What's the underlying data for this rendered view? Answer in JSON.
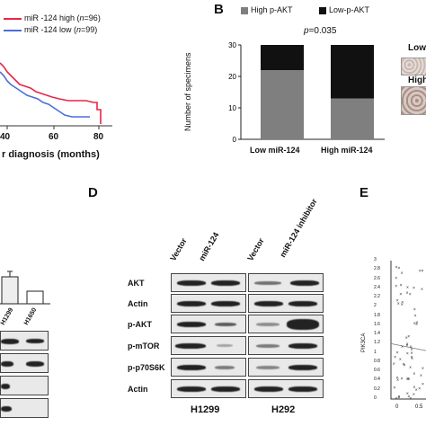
{
  "panelA": {
    "legend_high_label": "miR -124 high (",
    "legend_high_n": "n",
    "legend_high_val": "=96)",
    "legend_low_label": "miR -124 low (",
    "legend_low_n": "n",
    "legend_low_val": "=99)",
    "ticks": [
      "40",
      "60",
      "80"
    ],
    "xlabel": "r diagnosis (months)",
    "colors": {
      "high": "#e8254a",
      "low": "#4a6fd8"
    }
  },
  "panelB": {
    "letter": "B",
    "legend_high": "High p-AKT",
    "legend_low": "Low-p-AKT",
    "pvalue_p": "p",
    "pvalue_val": "=0.035",
    "ylabel": "Number of specimens",
    "yticks": [
      "0",
      "10",
      "20",
      "30"
    ],
    "categories": [
      "Low miR-124",
      "High miR-124"
    ],
    "side_labels": [
      "Low",
      "High"
    ]
  },
  "chart_data": {
    "type": "bar",
    "categories": [
      "Low miR-124",
      "High miR-124"
    ],
    "series": [
      {
        "name": "High p-AKT",
        "values": [
          22,
          13
        ],
        "color": "#7f7f7f"
      },
      {
        "name": "Low-p-AKT",
        "values": [
          8,
          17
        ],
        "color": "#111111"
      }
    ],
    "ylabel": "Number of specimens",
    "ylim": [
      0,
      30
    ],
    "annotation": "p=0.035"
  },
  "panelC": {
    "lanes": [
      "H1299",
      "H1650"
    ]
  },
  "panelD": {
    "letter": "D",
    "lanes": [
      "Vector",
      "miR-124",
      "Vector",
      "miR-124 inhibitor"
    ],
    "rows": [
      "AKT",
      "Actin",
      "p-AKT",
      "p-mTOR",
      "p-p70S6K",
      "Actin"
    ],
    "cells": [
      "H1299",
      "H292"
    ]
  },
  "panelE": {
    "letter": "E",
    "ylabel": "PIK3CA",
    "yticks": [
      "0",
      "0.2",
      "0.4",
      "0.6",
      "0.8",
      "1",
      "1.2",
      "1.4",
      "1.6",
      "1.8",
      "2",
      "2.2",
      "2.4",
      "2.6",
      "2.8",
      "3"
    ],
    "xticks": [
      "0",
      "0.5"
    ]
  }
}
